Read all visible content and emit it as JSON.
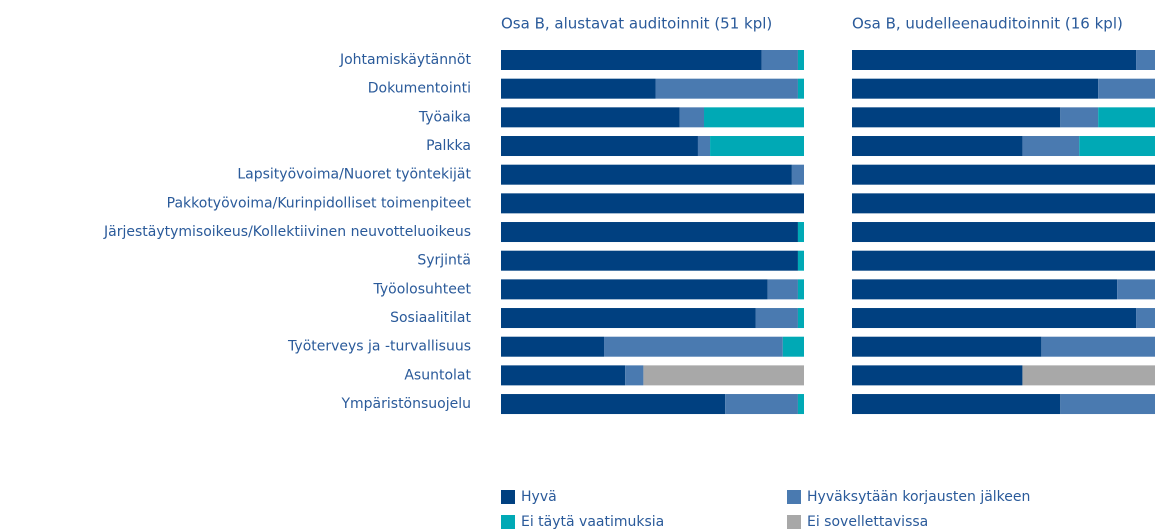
{
  "chart_data": [
    {
      "type": "bar",
      "orientation": "horizontal",
      "stacked": true,
      "title": "Osa B, alustavat auditoinnit (51 kpl)",
      "categories": [
        "Johtamiskäytännöt",
        "Dokumentointi",
        "Työaika",
        "Palkka",
        "Lapsityövoima/Nuoret työntekijät",
        "Pakkotyövoima/Kurinpidolliset toimenpiteet",
        "Järjestäytymisoikeus/Kollektiivinen neuvotteluoikeus",
        "Syrjintä",
        "Työolosuhteet",
        "Sosiaalitilat",
        "Työterveys ja -turvallisuus",
        "Asuntolat",
        "Ympäristönsuojelu"
      ],
      "xlim": [
        0,
        100
      ],
      "series": [
        {
          "name": "Hyvä",
          "color": "#004080",
          "values": [
            86,
            51,
            59,
            65,
            96,
            100,
            98,
            98,
            88,
            84,
            34,
            41,
            74
          ]
        },
        {
          "name": "Hyväksytään korjausten jälkeen",
          "color": "#4a7ab0",
          "values": [
            12,
            47,
            8,
            4,
            4,
            0,
            0,
            0,
            10,
            14,
            59,
            6,
            24
          ]
        },
        {
          "name": "Ei täytä vaatimuksia",
          "color": "#00a9b5",
          "values": [
            2,
            2,
            33,
            31,
            0,
            0,
            2,
            2,
            2,
            2,
            7,
            0,
            2
          ]
        },
        {
          "name": "Ei sovellettavissa",
          "color": "#a8a8a8",
          "values": [
            0,
            0,
            0,
            0,
            0,
            0,
            0,
            0,
            0,
            0,
            0,
            53,
            0
          ]
        }
      ]
    },
    {
      "type": "bar",
      "orientation": "horizontal",
      "stacked": true,
      "title": "Osa B, uudelleenauditoinnit (16 kpl)",
      "xlim": [
        0,
        100
      ],
      "series": [
        {
          "values": [
            93.75,
            81.25,
            68.75,
            56.25,
            100,
            100,
            100,
            100,
            87.5,
            93.75,
            62.5,
            56.25,
            68.75
          ]
        },
        {
          "values": [
            6.25,
            18.75,
            12.5,
            18.75,
            0,
            0,
            0,
            0,
            12.5,
            6.25,
            37.5,
            0,
            31.25
          ]
        },
        {
          "values": [
            0,
            0,
            18.75,
            25,
            0,
            0,
            0,
            0,
            0,
            0,
            0,
            0,
            0
          ]
        },
        {
          "values": [
            0,
            0,
            0,
            0,
            0,
            0,
            0,
            0,
            0,
            0,
            0,
            43.75,
            0
          ]
        }
      ]
    }
  ]
}
